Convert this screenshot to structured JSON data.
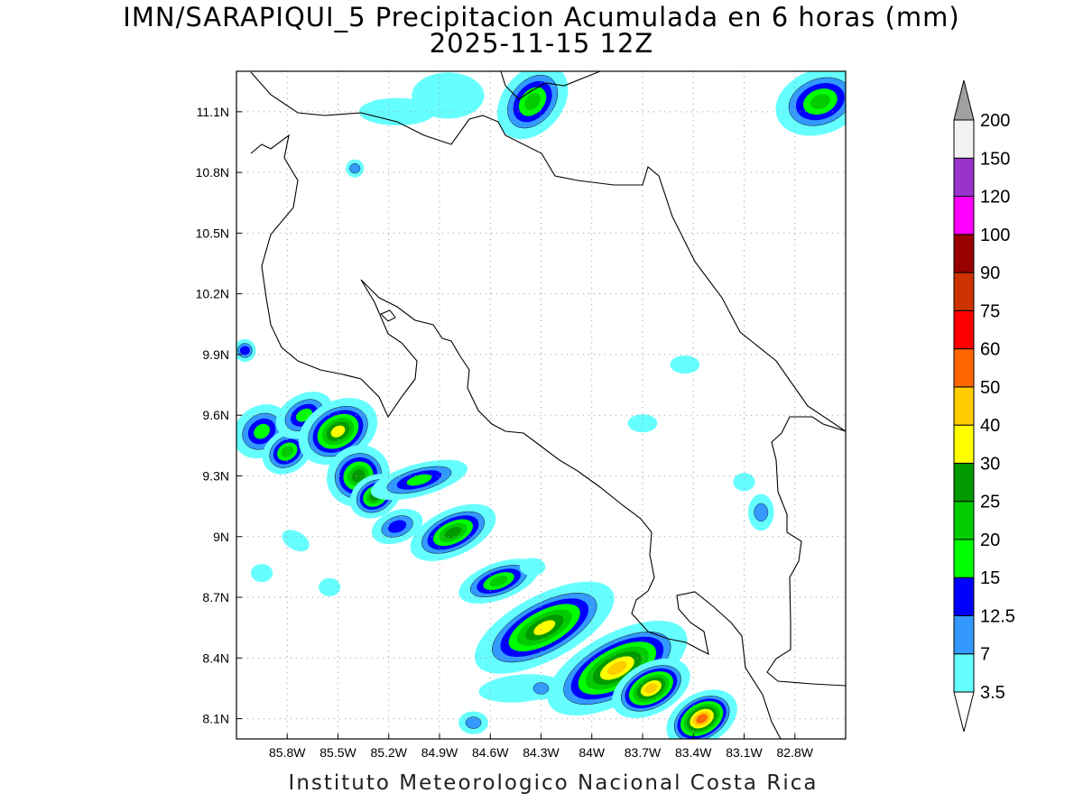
{
  "title_line1": "IMN/SARAPIQUI_5 Precipitacion Acumulada en 6 horas (mm)",
  "title_line2": "2025-11-15 12Z",
  "footer": "Instituto Meteorologico Nacional Costa Rica",
  "colors": {
    "coastline": "#000000",
    "grid": "#9a9a9a",
    "map_background": "#ffffff"
  },
  "chart_data": {
    "type": "heatmap",
    "lon_range": [
      -86.1,
      -82.5
    ],
    "lat_range": [
      8.0,
      11.3
    ],
    "x_ticks": [
      "85.8W",
      "85.5W",
      "85.2W",
      "84.9W",
      "84.6W",
      "84.3W",
      "84W",
      "83.7W",
      "83.4W",
      "83.1W",
      "82.8W"
    ],
    "x_tick_values": [
      -85.8,
      -85.5,
      -85.2,
      -84.9,
      -84.6,
      -84.3,
      -84.0,
      -83.7,
      -83.4,
      -83.1,
      -82.8
    ],
    "y_ticks": [
      "8.1N",
      "8.4N",
      "8.7N",
      "9N",
      "9.3N",
      "9.6N",
      "9.9N",
      "10.2N",
      "10.5N",
      "10.8N",
      "11.1N"
    ],
    "y_tick_values": [
      8.1,
      8.4,
      8.7,
      9.0,
      9.3,
      9.6,
      9.9,
      10.2,
      10.5,
      10.8,
      11.1
    ],
    "grid": "dotted",
    "colorbar": {
      "labels": [
        "3.5",
        "7",
        "12.5",
        "15",
        "20",
        "25",
        "30",
        "40",
        "50",
        "60",
        "75",
        "90",
        "100",
        "120",
        "150",
        "200"
      ],
      "colors": [
        "#66ffff",
        "#3399ff",
        "#0000ff",
        "#00ff00",
        "#00cc00",
        "#009900",
        "#ffff00",
        "#ffcc00",
        "#ff6600",
        "#ff0000",
        "#cc3300",
        "#990000",
        "#ff00ff",
        "#9933cc",
        "#f2f2f2"
      ],
      "under_color": "#ffffff",
      "over_color": "#a0a0a0"
    },
    "precip_features": [
      {
        "lon": -85.95,
        "lat": 9.52,
        "rx": 0.14,
        "ry": 0.1,
        "rot": -35,
        "level": 4
      },
      {
        "lon": -85.8,
        "lat": 9.42,
        "rx": 0.12,
        "ry": 0.08,
        "rot": -35,
        "level": 5
      },
      {
        "lon": -85.7,
        "lat": 9.6,
        "rx": 0.14,
        "ry": 0.08,
        "rot": -30,
        "level": 4
      },
      {
        "lon": -85.5,
        "lat": 9.52,
        "rx": 0.2,
        "ry": 0.12,
        "rot": -30,
        "level": 7
      },
      {
        "lon": -85.38,
        "lat": 9.3,
        "rx": 0.15,
        "ry": 0.12,
        "rot": -35,
        "level": 6
      },
      {
        "lon": -85.28,
        "lat": 9.2,
        "rx": 0.12,
        "ry": 0.08,
        "rot": -30,
        "level": 6
      },
      {
        "lon": -85.02,
        "lat": 9.28,
        "rx": 0.24,
        "ry": 0.06,
        "rot": -15,
        "level": 4
      },
      {
        "lon": -85.15,
        "lat": 9.05,
        "rx": 0.12,
        "ry": 0.06,
        "rot": -20,
        "level": 3
      },
      {
        "lon": -84.82,
        "lat": 9.02,
        "rx": 0.22,
        "ry": 0.09,
        "rot": -25,
        "level": 6
      },
      {
        "lon": -84.55,
        "lat": 8.78,
        "rx": 0.2,
        "ry": 0.07,
        "rot": -20,
        "level": 5
      },
      {
        "lon": -84.28,
        "lat": 8.55,
        "rx": 0.38,
        "ry": 0.13,
        "rot": -28,
        "level": 7
      },
      {
        "lon": -83.85,
        "lat": 8.35,
        "rx": 0.38,
        "ry": 0.14,
        "rot": -28,
        "level": 8
      },
      {
        "lon": -83.65,
        "lat": 8.25,
        "rx": 0.2,
        "ry": 0.1,
        "rot": -28,
        "level": 8
      },
      {
        "lon": -83.35,
        "lat": 8.1,
        "rx": 0.18,
        "ry": 0.1,
        "rot": -30,
        "level": 9
      },
      {
        "lon": -84.35,
        "lat": 11.15,
        "rx": 0.2,
        "ry": 0.12,
        "rot": -50,
        "level": 5
      },
      {
        "lon": -82.65,
        "lat": 11.15,
        "rx": 0.22,
        "ry": 0.13,
        "rot": -20,
        "level": 5
      },
      {
        "lon": -84.85,
        "lat": 11.18,
        "rx": 0.17,
        "ry": 0.09,
        "rot": 0,
        "level": 1
      },
      {
        "lon": -85.15,
        "lat": 11.1,
        "rx": 0.18,
        "ry": 0.05,
        "rot": 0,
        "level": 1
      },
      {
        "lon": -85.4,
        "lat": 10.82,
        "rx": 0.03,
        "ry": 0.03,
        "rot": 0,
        "level": 2
      },
      {
        "lon": -86.05,
        "lat": 9.92,
        "rx": 0.04,
        "ry": 0.04,
        "rot": 0,
        "level": 3
      },
      {
        "lon": -84.42,
        "lat": 8.25,
        "rx": 0.2,
        "ry": 0.05,
        "rot": -5,
        "level": 1
      },
      {
        "lon": -84.3,
        "lat": 8.25,
        "rx": 0.06,
        "ry": 0.04,
        "rot": 0,
        "level": 2
      },
      {
        "lon": -84.7,
        "lat": 8.08,
        "rx": 0.06,
        "ry": 0.04,
        "rot": 0,
        "level": 2
      },
      {
        "lon": -83.0,
        "lat": 9.12,
        "rx": 0.05,
        "ry": 0.07,
        "rot": 0,
        "level": 2
      },
      {
        "lon": -83.1,
        "lat": 9.27,
        "rx": 0.04,
        "ry": 0.03,
        "rot": 0,
        "level": 1
      },
      {
        "lon": -83.7,
        "lat": 9.56,
        "rx": 0.06,
        "ry": 0.03,
        "rot": 0,
        "level": 1
      },
      {
        "lon": -83.45,
        "lat": 9.85,
        "rx": 0.06,
        "ry": 0.03,
        "rot": 0,
        "level": 1
      },
      {
        "lon": -84.35,
        "lat": 8.85,
        "rx": 0.05,
        "ry": 0.03,
        "rot": 0,
        "level": 1
      },
      {
        "lon": -85.75,
        "lat": 8.98,
        "rx": 0.06,
        "ry": 0.03,
        "rot": 30,
        "level": 1
      },
      {
        "lon": -85.95,
        "lat": 8.82,
        "rx": 0.04,
        "ry": 0.03,
        "rot": 0,
        "level": 1
      },
      {
        "lon": -85.55,
        "lat": 8.75,
        "rx": 0.04,
        "ry": 0.03,
        "rot": 0,
        "level": 1
      }
    ]
  }
}
